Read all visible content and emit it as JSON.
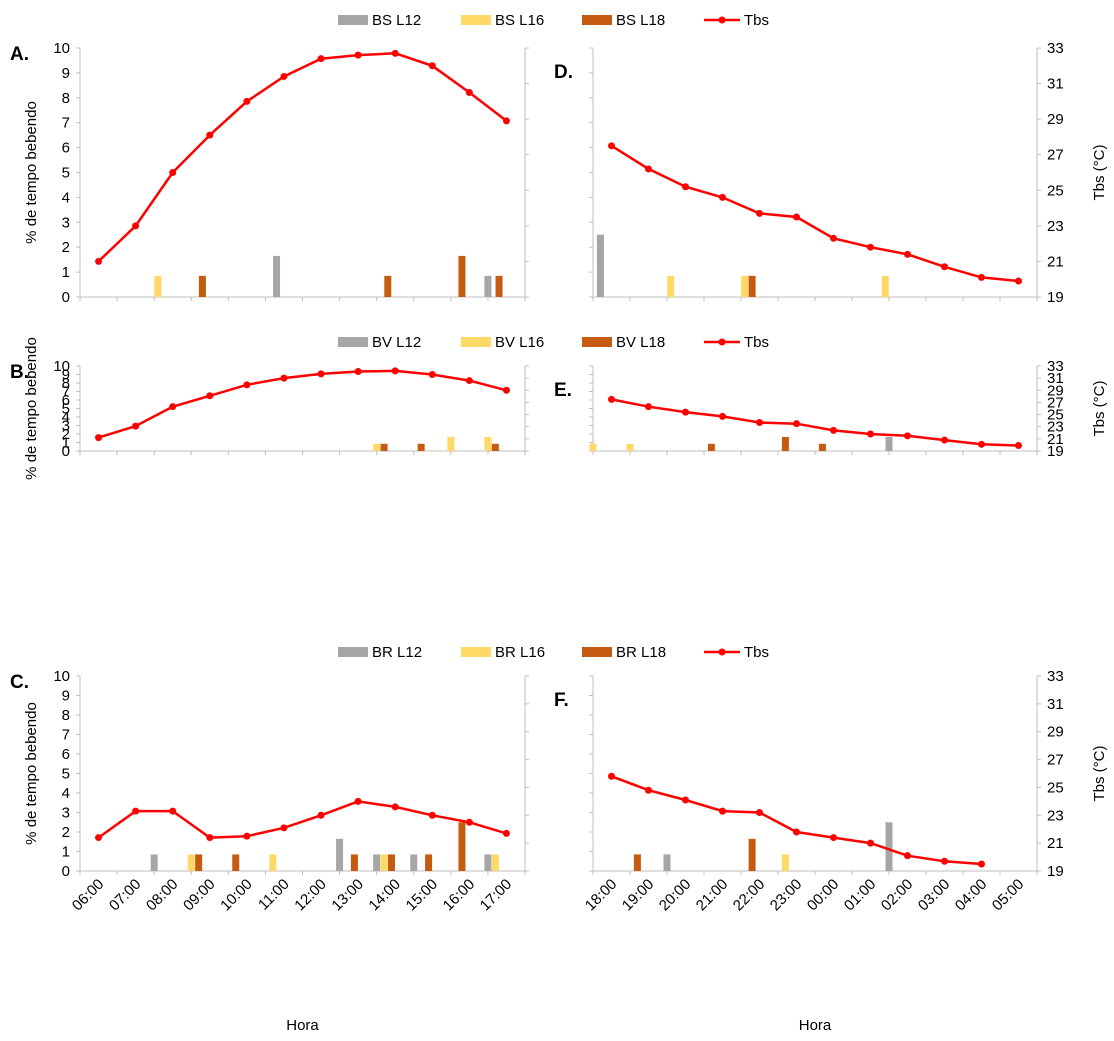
{
  "colors": {
    "l12": "#a6a6a6",
    "l16": "#ffd966",
    "l18": "#c55a11",
    "tbs": "#ff0000",
    "axis": "#bfbfbf"
  },
  "legends": [
    [
      "BS L12",
      "BS L16",
      "BS L18",
      "Tbs"
    ],
    [
      "BV L12",
      "BV L16",
      "BV L18",
      "Tbs"
    ],
    [
      "BR L12",
      "BR L16",
      "BR L18",
      "Tbs"
    ]
  ],
  "axes": {
    "left_title": "% de tempo bebendo",
    "right_title": "Tbs (°C)",
    "x_title": "Hora",
    "left_ticks": [
      "0",
      "1",
      "2",
      "3",
      "4",
      "5",
      "6",
      "7",
      "8",
      "9",
      "10"
    ],
    "right_ticks": [
      "19",
      "21",
      "23",
      "25",
      "27",
      "29",
      "31",
      "33"
    ],
    "day_ticks": [
      "06:00",
      "07:00",
      "08:00",
      "09:00",
      "10:00",
      "11:00",
      "12:00",
      "13:00",
      "14:00",
      "15:00",
      "16:00",
      "17:00"
    ],
    "night_ticks": [
      "18:00",
      "19:00",
      "20:00",
      "21:00",
      "22:00",
      "23:00",
      "00:00",
      "01:00",
      "02:00",
      "03:00",
      "04:00",
      "05:00"
    ]
  },
  "chart_data": [
    {
      "panel": "A.",
      "type": "bar+line",
      "period": "day",
      "ylim": [
        0,
        10
      ],
      "y2lim": [
        19,
        33
      ],
      "bars": [
        {
          "series": "BS L16",
          "x": 8.1,
          "value": 0.85
        },
        {
          "series": "BS L18",
          "x": 9.3,
          "value": 0.85
        },
        {
          "series": "BS L12",
          "x": 11.3,
          "value": 1.65
        },
        {
          "series": "BS L18",
          "x": 14.3,
          "value": 0.85
        },
        {
          "series": "BS L18",
          "x": 16.3,
          "value": 1.65
        },
        {
          "series": "BS L12",
          "x": 17.0,
          "value": 0.85
        },
        {
          "series": "BS L18",
          "x": 17.3,
          "value": 0.85
        }
      ],
      "tbs": {
        "x": [
          6.5,
          7.5,
          8.5,
          9.5,
          10.5,
          11.5,
          12.5,
          13.5,
          14.5,
          15.5,
          16.5,
          17.5
        ],
        "y": [
          21.0,
          23.0,
          26.0,
          28.1,
          30.0,
          31.4,
          32.4,
          32.6,
          32.7,
          32.0,
          30.5,
          28.9
        ]
      }
    },
    {
      "panel": "D.",
      "type": "bar+line",
      "period": "night",
      "ylim": [
        0,
        10
      ],
      "y2lim": [
        19,
        33
      ],
      "bars": [
        {
          "series": "BS L12",
          "x": 18.2,
          "value": 2.5
        },
        {
          "series": "BS L16",
          "x": 20.1,
          "value": 0.85
        },
        {
          "series": "BS L16",
          "x": 22.1,
          "value": 0.85
        },
        {
          "series": "BS L18",
          "x": 22.3,
          "value": 0.85
        },
        {
          "series": "BS L16",
          "x": 25.9,
          "value": 0.85
        }
      ],
      "tbs": {
        "x": [
          18.5,
          19.5,
          20.5,
          21.5,
          22.5,
          23.5,
          24.5,
          25.5,
          26.5,
          27.5,
          28.5,
          29.5
        ],
        "y": [
          27.5,
          26.2,
          25.2,
          24.6,
          23.7,
          23.5,
          22.3,
          21.8,
          21.4,
          20.7,
          20.1,
          19.9
        ]
      }
    },
    {
      "panel": "B.",
      "type": "bar+line",
      "period": "day",
      "ylim": [
        0,
        10
      ],
      "y2lim": [
        19,
        33
      ],
      "bars": [
        {
          "series": "BV L16",
          "x": 14.0,
          "value": 0.85
        },
        {
          "series": "BV L18",
          "x": 14.2,
          "value": 0.85
        },
        {
          "series": "BV L18",
          "x": 15.2,
          "value": 0.85
        },
        {
          "series": "BV L16",
          "x": 16.0,
          "value": 1.65
        },
        {
          "series": "BV L16",
          "x": 17.0,
          "value": 1.65
        },
        {
          "series": "BV L18",
          "x": 17.2,
          "value": 0.85
        }
      ],
      "tbs": {
        "x": [
          6.5,
          7.5,
          8.5,
          9.5,
          10.5,
          11.5,
          12.5,
          13.5,
          14.5,
          15.5,
          16.5,
          17.5
        ],
        "y": [
          21.2,
          23.1,
          26.3,
          28.1,
          29.9,
          31.0,
          31.7,
          32.1,
          32.2,
          31.6,
          30.6,
          29.0
        ]
      }
    },
    {
      "panel": "E.",
      "type": "bar+line",
      "period": "night",
      "ylim": [
        0,
        10
      ],
      "y2lim": [
        19,
        33
      ],
      "bars": [
        {
          "series": "BV L16",
          "x": 18.0,
          "value": 0.85
        },
        {
          "series": "BV L16",
          "x": 19.0,
          "value": 0.85
        },
        {
          "series": "BV L18",
          "x": 21.2,
          "value": 0.85
        },
        {
          "series": "BV L18",
          "x": 23.2,
          "value": 1.65
        },
        {
          "series": "BV L18",
          "x": 24.2,
          "value": 0.85
        },
        {
          "series": "BV L12",
          "x": 26.0,
          "value": 1.65
        }
      ],
      "tbs": {
        "x": [
          18.5,
          19.5,
          20.5,
          21.5,
          22.5,
          23.5,
          24.5,
          25.5,
          26.5,
          27.5,
          28.5,
          29.5
        ],
        "y": [
          27.5,
          26.3,
          25.4,
          24.7,
          23.7,
          23.5,
          22.4,
          21.8,
          21.5,
          20.8,
          20.1,
          19.9
        ]
      }
    },
    {
      "panel": "C.",
      "type": "bar+line",
      "period": "day",
      "ylim": [
        0,
        10
      ],
      "y2lim": [
        19,
        33
      ],
      "bars": [
        {
          "series": "BR L12",
          "x": 8.0,
          "value": 0.85
        },
        {
          "series": "BR L16",
          "x": 9.0,
          "value": 0.85
        },
        {
          "series": "BR L18",
          "x": 9.2,
          "value": 0.85
        },
        {
          "series": "BR L18",
          "x": 10.2,
          "value": 0.85
        },
        {
          "series": "BR L16",
          "x": 11.2,
          "value": 0.85
        },
        {
          "series": "BR L12",
          "x": 13.0,
          "value": 1.65
        },
        {
          "series": "BR L18",
          "x": 13.4,
          "value": 0.85
        },
        {
          "series": "BR L12",
          "x": 14.0,
          "value": 0.85
        },
        {
          "series": "BR L16",
          "x": 14.2,
          "value": 0.85
        },
        {
          "series": "BR L18",
          "x": 14.4,
          "value": 0.85
        },
        {
          "series": "BR L12",
          "x": 15.0,
          "value": 0.85
        },
        {
          "series": "BR L18",
          "x": 15.4,
          "value": 0.85
        },
        {
          "series": "BR L18",
          "x": 16.3,
          "value": 2.5
        },
        {
          "series": "BR L12",
          "x": 17.0,
          "value": 0.85
        },
        {
          "series": "BR L16",
          "x": 17.2,
          "value": 0.85
        }
      ],
      "tbs": {
        "x": [
          6.5,
          7.5,
          8.5,
          9.5,
          10.5,
          11.5,
          12.5,
          13.5,
          14.5,
          15.5,
          16.5,
          17.5
        ],
        "y": [
          21.4,
          23.3,
          23.3,
          21.4,
          21.5,
          22.1,
          23.0,
          24.0,
          23.6,
          23.0,
          22.5,
          21.7
        ]
      }
    },
    {
      "panel": "F.",
      "type": "bar+line",
      "period": "night",
      "ylim": [
        0,
        10
      ],
      "y2lim": [
        19,
        33
      ],
      "bars": [
        {
          "series": "BR L18",
          "x": 19.2,
          "value": 0.85
        },
        {
          "series": "BR L12",
          "x": 20.0,
          "value": 0.85
        },
        {
          "series": "BR L18",
          "x": 22.3,
          "value": 1.65
        },
        {
          "series": "BR L16",
          "x": 23.2,
          "value": 0.85
        },
        {
          "series": "BR L12",
          "x": 26.0,
          "value": 2.5
        }
      ],
      "tbs": {
        "x": [
          18.5,
          19.5,
          20.5,
          21.5,
          22.5,
          23.5,
          24.5,
          25.5,
          26.5,
          27.5,
          28.5
        ],
        "y": [
          25.8,
          24.8,
          24.1,
          23.3,
          23.2,
          21.8,
          21.4,
          21.0,
          20.1,
          19.7,
          19.5
        ]
      }
    }
  ]
}
